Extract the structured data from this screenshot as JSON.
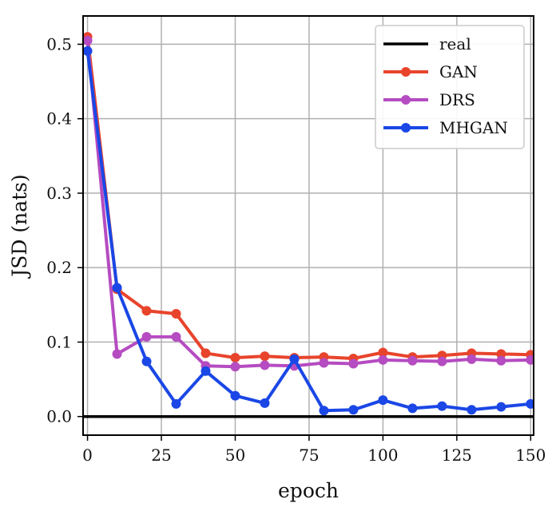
{
  "chart_data": {
    "type": "line",
    "title": "",
    "xlabel": "epoch",
    "ylabel": "JSD (nats)",
    "xlim": [
      -1.5,
      151
    ],
    "ylim": [
      -0.025,
      0.538
    ],
    "xticks": [
      0,
      25,
      50,
      75,
      100,
      125,
      150
    ],
    "yticks": [
      0.0,
      0.1,
      0.2,
      0.3,
      0.4,
      0.5
    ],
    "xtick_labels": [
      "0",
      "25",
      "50",
      "75",
      "100",
      "125",
      "150"
    ],
    "ytick_labels": [
      "0.0",
      "0.1",
      "0.2",
      "0.3",
      "0.4",
      "0.5"
    ],
    "grid": true,
    "legend_position": "top-right",
    "series": [
      {
        "name": "real",
        "color": "#000000",
        "marker": false,
        "x": [
          -1.5,
          151
        ],
        "y": [
          0.0,
          0.0
        ]
      },
      {
        "name": "GAN",
        "color": "#e8442c",
        "marker": true,
        "x": [
          0,
          10,
          20,
          30,
          40,
          50,
          60,
          70,
          80,
          90,
          100,
          110,
          120,
          130,
          140,
          150
        ],
        "y": [
          0.51,
          0.171,
          0.142,
          0.138,
          0.085,
          0.079,
          0.081,
          0.079,
          0.08,
          0.078,
          0.086,
          0.08,
          0.082,
          0.085,
          0.084,
          0.083
        ]
      },
      {
        "name": "DRS",
        "color": "#b54cc1",
        "marker": true,
        "x": [
          0,
          10,
          20,
          30,
          40,
          50,
          60,
          70,
          80,
          90,
          100,
          110,
          120,
          130,
          140,
          150
        ],
        "y": [
          0.505,
          0.084,
          0.107,
          0.107,
          0.068,
          0.067,
          0.069,
          0.068,
          0.072,
          0.071,
          0.076,
          0.075,
          0.074,
          0.077,
          0.075,
          0.076
        ]
      },
      {
        "name": "MHGAN",
        "color": "#1a47e6",
        "marker": true,
        "x": [
          0,
          10,
          20,
          30,
          40,
          50,
          60,
          70,
          80,
          90,
          100,
          110,
          120,
          130,
          140,
          150
        ],
        "y": [
          0.491,
          0.173,
          0.074,
          0.017,
          0.061,
          0.028,
          0.018,
          0.077,
          0.008,
          0.009,
          0.022,
          0.011,
          0.014,
          0.009,
          0.013,
          0.017
        ]
      }
    ]
  }
}
